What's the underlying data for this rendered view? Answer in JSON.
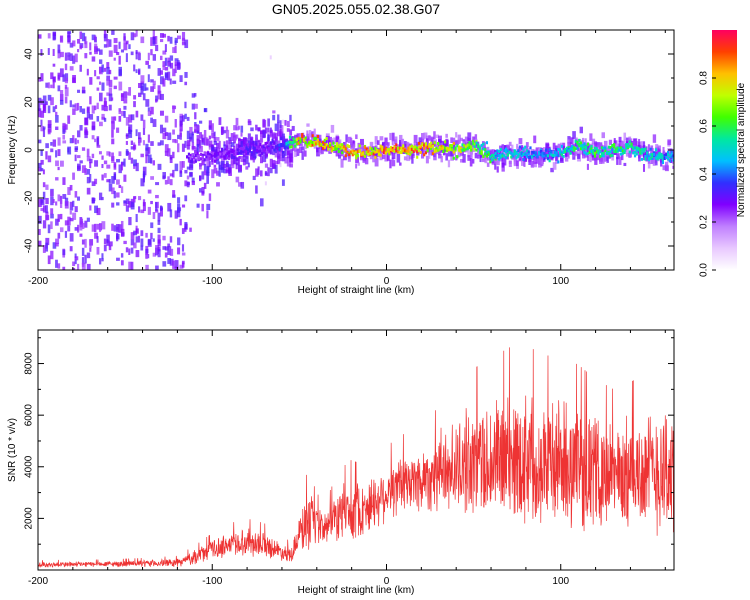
{
  "figure_title": "GN05.2025.055.02.38.G07",
  "chart_data": [
    {
      "type": "heatmap",
      "xlabel": "Height of straight line (km)",
      "ylabel": "Frequency (Hz)",
      "xlim": [
        -200,
        165
      ],
      "ylim": [
        -50,
        50
      ],
      "xticks": [
        -200,
        -100,
        0,
        100
      ],
      "yticks": [
        -40,
        -20,
        0,
        20,
        40
      ],
      "colorbar": {
        "label": "Normalized spectral amplitude",
        "ticks": [
          "0.0",
          "0.2",
          "0.4",
          "0.6",
          "0.8"
        ],
        "range": [
          0,
          1
        ],
        "colormap": [
          "#ffffff",
          "#e8c8ff",
          "#c080ff",
          "#8000ff",
          "#3030ff",
          "#00c0ff",
          "#00e8a0",
          "#40ff00",
          "#c0ff00",
          "#ffc000",
          "#ff4000",
          "#ff0060"
        ]
      },
      "ridge": {
        "x": [
          -110,
          -100,
          -90,
          -80,
          -70,
          -60,
          -50,
          -40,
          -30,
          -20,
          -10,
          0,
          10,
          20,
          30,
          40,
          50,
          60,
          70,
          80,
          90,
          100,
          110,
          120,
          130,
          140,
          150,
          160
        ],
        "freq": [
          -3,
          -2,
          -1,
          0,
          1,
          2,
          4,
          3,
          1,
          -1,
          -1,
          0,
          0,
          1,
          1,
          0,
          2,
          -3,
          -1,
          -2,
          -2,
          -1,
          2,
          -1,
          0,
          1,
          -2,
          -3
        ],
        "amplitude": [
          0.3,
          0.3,
          0.3,
          0.35,
          0.3,
          0.4,
          0.9,
          0.9,
          0.85,
          0.9,
          0.9,
          0.95,
          0.9,
          0.95,
          0.9,
          0.8,
          0.7,
          0.6,
          0.55,
          0.5,
          0.5,
          0.55,
          0.6,
          0.65,
          0.6,
          0.6,
          0.55,
          0.5
        ]
      }
    },
    {
      "type": "line",
      "xlabel": "Height of straight line (km)",
      "ylabel": "SNR (10 * v/v)",
      "xlim": [
        -200,
        165
      ],
      "ylim": [
        0,
        9300
      ],
      "xticks": [
        -200,
        -100,
        0,
        100
      ],
      "yticks": [
        2000,
        4000,
        6000,
        8000
      ],
      "series": [
        {
          "color": "#ee3333",
          "envelope": {
            "x": [
              -200,
              -180,
              -160,
              -140,
              -120,
              -110,
              -100,
              -90,
              -80,
              -70,
              -60,
              -55,
              -50,
              -45,
              -40,
              -35,
              -30,
              -25,
              -20,
              -15,
              -10,
              0,
              10,
              20,
              30,
              40,
              50,
              60,
              70,
              80,
              90,
              100,
              110,
              120,
              130,
              140,
              150,
              160,
              165
            ],
            "mean": [
              200,
              220,
              230,
              250,
              280,
              500,
              800,
              1000,
              1100,
              1000,
              700,
              600,
              1400,
              1800,
              1700,
              1600,
              2000,
              2200,
              2300,
              2300,
              2500,
              3000,
              3300,
              3500,
              3800,
              4000,
              4200,
              4200,
              4300,
              4400,
              4200,
              4100,
              4000,
              3800,
              3600,
              3700,
              3800,
              4000,
              3500
            ],
            "spread": [
              100,
              100,
              100,
              120,
              150,
              250,
              350,
              450,
              500,
              450,
              300,
              300,
              600,
              1200,
              700,
              600,
              800,
              1000,
              1100,
              1000,
              1000,
              1000,
              1100,
              1200,
              1400,
              1600,
              2000,
              2200,
              2400,
              2400,
              2300,
              2300,
              2200,
              2000,
              1900,
              2000,
              2100,
              2600,
              2500
            ]
          }
        }
      ]
    }
  ]
}
